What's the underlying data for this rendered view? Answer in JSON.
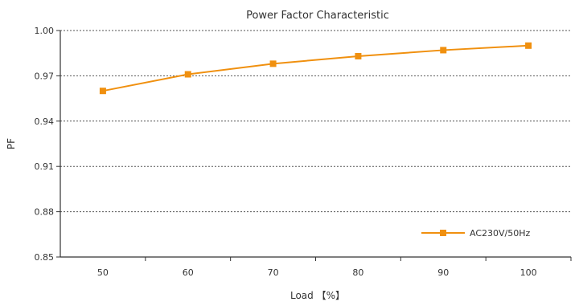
{
  "chart_data": {
    "type": "line",
    "title": "Power Factor Characteristic",
    "xlabel": "Load 【%】",
    "ylabel": "PF",
    "x": [
      50,
      60,
      70,
      80,
      90,
      100
    ],
    "x_tick_labels": [
      "50",
      "60",
      "70",
      "80",
      "90",
      "100"
    ],
    "ylim": [
      0.85,
      1.0
    ],
    "y_ticks": [
      0.85,
      0.88,
      0.91,
      0.94,
      0.97,
      1.0
    ],
    "y_tick_labels": [
      "0.85",
      "0.88",
      "0.91",
      "0.94",
      "0.97",
      "1.00"
    ],
    "grid": "horizontal dotted",
    "legend_position": "bottom-right",
    "series": [
      {
        "name": "AC230V/50Hz",
        "values": [
          0.96,
          0.971,
          0.978,
          0.983,
          0.987,
          0.99
        ],
        "color": "#f0900f",
        "marker": "square"
      }
    ]
  }
}
